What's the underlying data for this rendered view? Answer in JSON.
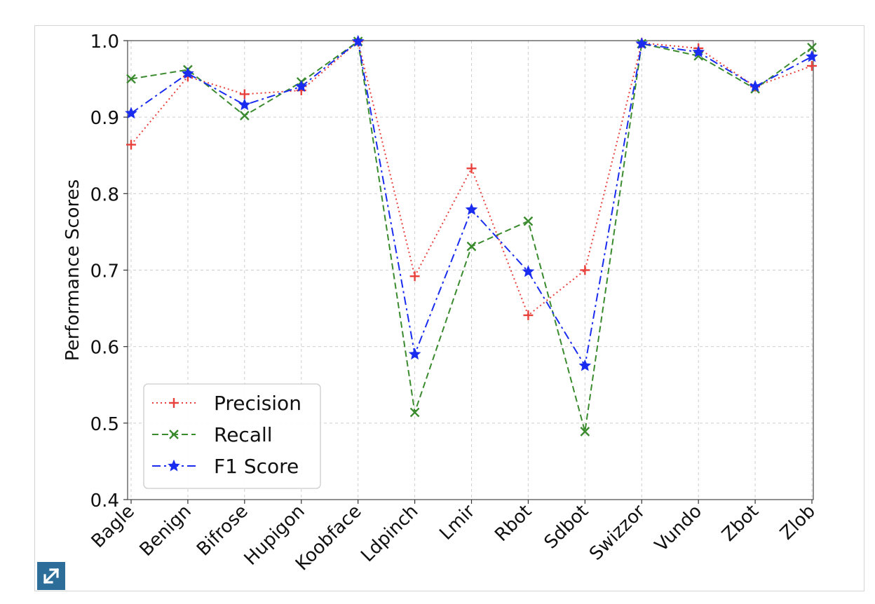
{
  "chart_data": {
    "type": "line",
    "title": "",
    "xlabel": "",
    "ylabel": "Performance Scores",
    "ylim": [
      0.4,
      1.0
    ],
    "yticks": [
      "0.4",
      "0.5",
      "0.6",
      "0.7",
      "0.8",
      "0.9",
      "1.0"
    ],
    "grid": true,
    "legend_position": "lower-left",
    "categories": [
      "Bagle",
      "Benign",
      "Bifrose",
      "Hupigon",
      "Koobface",
      "Ldpinch",
      "Lmir",
      "Rbot",
      "Sdbot",
      "Swizzor",
      "Vundo",
      "Zbot",
      "Zlob"
    ],
    "series": [
      {
        "name": "Precision",
        "color": "#e8413c",
        "dash": "dotted",
        "marker": "plus",
        "values": [
          0.864,
          0.953,
          0.93,
          0.935,
          0.999,
          0.692,
          0.833,
          0.641,
          0.7,
          0.997,
          0.99,
          0.94,
          0.967
        ]
      },
      {
        "name": "Recall",
        "color": "#3a8a2e",
        "dash": "dashed",
        "marker": "x",
        "values": [
          0.95,
          0.962,
          0.902,
          0.946,
          0.999,
          0.514,
          0.731,
          0.764,
          0.489,
          0.996,
          0.98,
          0.937,
          0.991
        ]
      },
      {
        "name": "F1 Score",
        "color": "#1a2cf0",
        "dash": "dashdot",
        "marker": "star",
        "values": [
          0.905,
          0.957,
          0.916,
          0.94,
          0.999,
          0.59,
          0.779,
          0.698,
          0.575,
          0.996,
          0.985,
          0.94,
          0.979
        ]
      }
    ]
  },
  "expand_icon": "expand-arrows-icon"
}
